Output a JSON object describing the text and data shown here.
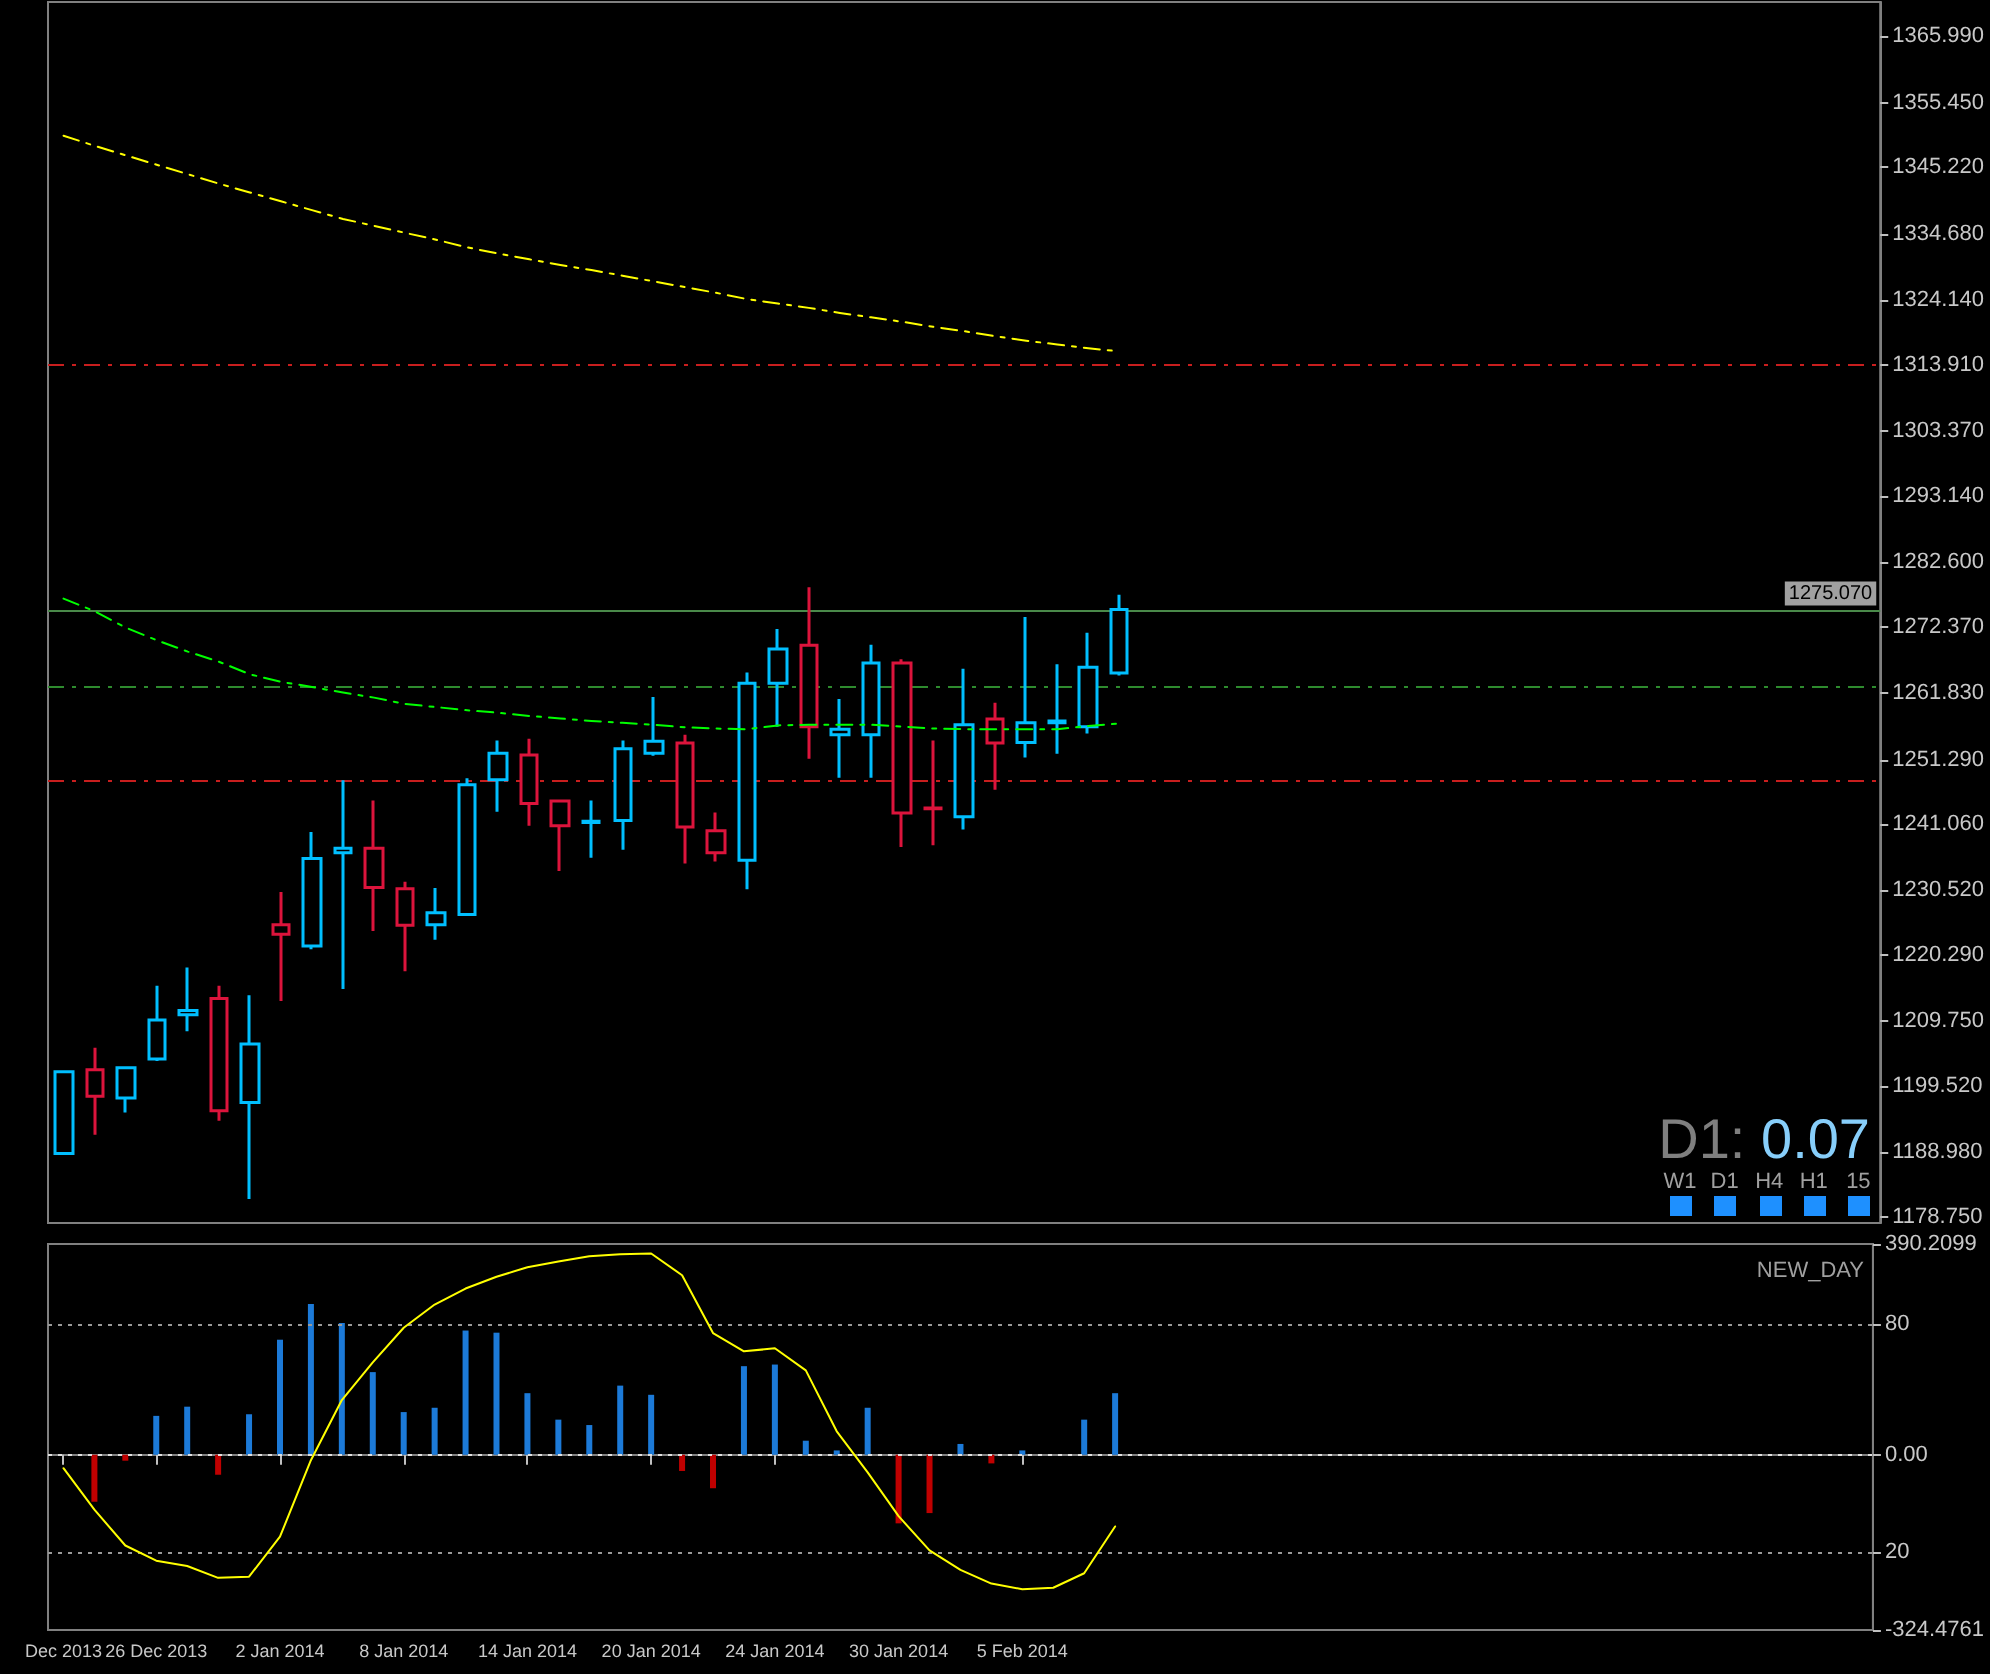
{
  "chart_data": [
    {
      "type": "candlestick",
      "tick_labels": "y",
      "categories": [
        null,
        null,
        null,
        null,
        null,
        null,
        null,
        null,
        null,
        null,
        null,
        null,
        null,
        null,
        null,
        null,
        null,
        null,
        null,
        null,
        null,
        null,
        null,
        null,
        null,
        null,
        null,
        null,
        null,
        null,
        null,
        null,
        null,
        null,
        null,
        null,
        null,
        null,
        null,
        null,
        null,
        null,
        null,
        null,
        null,
        null,
        null,
        null,
        null,
        null,
        null,
        null,
        null,
        null,
        null,
        null,
        null,
        null,
        null
      ],
      "ohlc": [
        [
          1188.8,
          1201.8,
          1188.8,
          1201.8
        ],
        [
          1202.1,
          1205.6,
          1191.8,
          1197.9
        ],
        [
          1197.6,
          1202.4,
          1195.3,
          1202.4
        ],
        [
          1203.8,
          1215.4,
          1203.5,
          1210.0
        ],
        [
          1210.8,
          1218.3,
          1208.2,
          1211.5
        ],
        [
          1213.4,
          1215.4,
          1194.0,
          1195.6
        ],
        [
          1196.9,
          1213.9,
          1181.6,
          1206.2
        ],
        [
          1225.1,
          1230.3,
          1213.0,
          1223.6
        ],
        [
          1221.7,
          1239.8,
          1221.2,
          1235.6
        ],
        [
          1236.5,
          1248.0,
          1214.9,
          1237.2
        ],
        [
          1237.2,
          1244.8,
          1224.1,
          1231.0
        ],
        [
          1230.8,
          1231.9,
          1217.7,
          1225.0
        ],
        [
          1225.1,
          1230.9,
          1222.7,
          1227.0
        ],
        [
          1226.7,
          1248.3,
          1226.7,
          1247.3
        ],
        [
          1248.1,
          1254.3,
          1243.0,
          1252.3
        ],
        [
          1252.0,
          1254.6,
          1240.8,
          1244.3
        ],
        [
          1244.7,
          1244.7,
          1233.6,
          1240.8
        ],
        [
          1241.3,
          1244.8,
          1235.7,
          1241.5
        ],
        [
          1241.6,
          1254.3,
          1237.0,
          1253.0
        ],
        [
          1252.3,
          1261.2,
          1251.9,
          1254.2
        ],
        [
          1253.9,
          1255.2,
          1234.8,
          1240.6
        ],
        [
          1240.0,
          1242.9,
          1235.1,
          1236.5
        ],
        [
          1235.3,
          1265.1,
          1230.7,
          1263.4
        ],
        [
          1263.4,
          1272.0,
          1256.5,
          1268.8
        ],
        [
          1269.4,
          1278.6,
          1251.4,
          1256.5
        ],
        [
          1255.2,
          1260.9,
          1248.4,
          1256.1
        ],
        [
          1255.2,
          1269.5,
          1248.4,
          1266.6
        ],
        [
          1266.6,
          1267.2,
          1237.4,
          1242.8
        ],
        [
          1243.6,
          1254.3,
          1237.7,
          1243.5
        ],
        [
          1242.2,
          1265.7,
          1240.2,
          1256.8
        ],
        [
          1257.7,
          1260.3,
          1246.5,
          1253.9
        ],
        [
          1254.0,
          1273.9,
          1251.6,
          1257.1
        ],
        [
          1257.1,
          1266.4,
          1252.2,
          1257.4
        ],
        [
          1256.5,
          1271.4,
          1255.4,
          1265.9
        ],
        [
          1265.0,
          1277.4,
          1264.6,
          1275.07
        ],
        null,
        null,
        null,
        null,
        null,
        null,
        null,
        null,
        null,
        null,
        null,
        null,
        null,
        null,
        null,
        null,
        null,
        null,
        null,
        null,
        null,
        null,
        null,
        null
      ],
      "colors": [
        "#00bfff",
        "#dc143c",
        "#00bfff",
        "#00bfff",
        "#00bfff",
        "#dc143c",
        "#00bfff",
        "#dc143c",
        "#00bfff",
        "#00bfff",
        "#dc143c",
        "#dc143c",
        "#00bfff",
        "#00bfff",
        "#00bfff",
        "#dc143c",
        "#dc143c",
        "#00bfff",
        "#00bfff",
        "#00bfff",
        "#dc143c",
        "#dc143c",
        "#00bfff",
        "#00bfff",
        "#dc143c",
        "#00bfff",
        "#00bfff",
        "#dc143c",
        "#dc143c",
        "#00bfff",
        "#dc143c",
        "#00bfff",
        "#00bfff",
        "#00bfff",
        "#00bfff",
        null,
        null,
        null,
        null,
        null,
        null,
        null,
        null,
        null,
        null,
        null,
        null,
        null,
        null,
        null,
        null,
        null,
        null,
        null,
        null,
        null,
        null,
        null,
        null
      ],
      "series": [
        {
          "type": "line",
          "color": "#ffff00",
          "line_style": "dashed",
          "values": [
            1350.2,
            1348.6,
            1347.1,
            1345.6,
            1344.1,
            1342.6,
            1341.2,
            1339.8,
            1338.4,
            1337.0,
            1335.9,
            1334.8,
            1333.7,
            1332.5,
            1331.5,
            1330.6,
            1329.7,
            1328.9,
            1328.0,
            1327.1,
            1326.2,
            1325.3,
            1324.3,
            1323.6,
            1322.9,
            1322.1,
            1321.4,
            1320.7,
            1319.9,
            1319.2,
            1318.4,
            1317.7,
            1317.1,
            1316.5,
            1316.0,
            null,
            null,
            null,
            null,
            null,
            null,
            null,
            null,
            null,
            null,
            null,
            null,
            null,
            null,
            null,
            null,
            null,
            null,
            null,
            null,
            null,
            null,
            null,
            null
          ]
        },
        {
          "type": "line",
          "color": "#00ff00",
          "line_style": "dashed",
          "values": [
            1276.8,
            1274.8,
            1272.2,
            1270.2,
            1268.4,
            1266.8,
            1264.8,
            1263.6,
            1262.8,
            1261.9,
            1261.1,
            1260.1,
            1259.6,
            1259.1,
            1258.7,
            1258.2,
            1257.8,
            1257.4,
            1257.1,
            1256.8,
            1256.4,
            1256.2,
            1256.1,
            1256.7,
            1256.8,
            1256.8,
            1256.8,
            1256.5,
            1256.2,
            1256.1,
            1256.1,
            1256.1,
            1256.1,
            1256.6,
            1257.0,
            null,
            null,
            null,
            null,
            null,
            null,
            null,
            null,
            null,
            null,
            null,
            null,
            null,
            null,
            null,
            null,
            null,
            null,
            null,
            null,
            null,
            null,
            null,
            null
          ]
        }
      ],
      "ylim": [
        1177.8,
        1371.4
      ],
      "yticks": [
        {
          "value": 1365.99,
          "label": "1365.990"
        },
        {
          "value": 1355.45,
          "label": "1355.450"
        },
        {
          "value": 1345.22,
          "label": "1345.220"
        },
        {
          "value": 1334.68,
          "label": "1334.680"
        },
        {
          "value": 1324.14,
          "label": "1324.140"
        },
        {
          "value": 1313.91,
          "label": "1313.910"
        },
        {
          "value": 1303.37,
          "label": "1303.370"
        },
        {
          "value": 1293.14,
          "label": "1293.140"
        },
        {
          "value": 1282.6,
          "label": "1282.600"
        },
        {
          "value": 1272.37,
          "label": "1272.370"
        },
        {
          "value": 1261.83,
          "label": "1261.830"
        },
        {
          "value": 1251.29,
          "label": "1251.290"
        },
        {
          "value": 1241.06,
          "label": "1241.060"
        },
        {
          "value": 1230.52,
          "label": "1230.520"
        },
        {
          "value": 1220.29,
          "label": "1220.290"
        },
        {
          "value": 1209.75,
          "label": "1209.750"
        },
        {
          "value": 1199.52,
          "label": "1199.520"
        },
        {
          "value": 1188.98,
          "label": "1188.980"
        },
        {
          "value": 1178.75,
          "label": "1178.750"
        }
      ],
      "ref_lines": [
        {
          "axis": "y",
          "value": 1314.0,
          "color": "#c81e1e",
          "line_style": "dashed"
        },
        {
          "axis": "y",
          "value": 1275.07,
          "label": "1275.070",
          "color": "#4a8a4a",
          "line_style": "solid"
        },
        {
          "axis": "y",
          "value": 1262.9,
          "color": "#2e8b2e",
          "line_style": "dashed"
        },
        {
          "axis": "y",
          "value": 1248.0,
          "color": "#c81e1e",
          "line_style": "dashed"
        }
      ],
      "annotations": [
        "D1: 0.07",
        "W1",
        "D1",
        "H4",
        "H1",
        "15"
      ]
    },
    {
      "type": "bar",
      "title": "NEW_DAY",
      "categories": [
        "Dec 2013",
        null,
        null,
        "26 Dec 2013",
        null,
        null,
        null,
        "2 Jan 2014",
        null,
        null,
        null,
        "8 Jan 2014",
        null,
        null,
        null,
        "14 Jan 2014",
        null,
        null,
        null,
        "20 Jan 2014",
        null,
        null,
        null,
        "24 Jan 2014",
        null,
        null,
        null,
        "30 Jan 2014",
        null,
        null,
        null,
        "5 Feb 2014",
        null,
        null,
        null,
        null,
        null,
        null,
        null,
        null,
        null,
        null,
        null,
        null,
        null,
        null,
        null,
        null,
        null,
        null,
        null,
        null,
        null,
        null,
        null,
        null,
        null,
        null,
        null
      ],
      "series": [
        {
          "type": "bar",
          "values": [
            null,
            -87,
            -11,
            72,
            89,
            -37,
            75,
            213,
            279,
            244,
            153,
            79,
            87,
            230,
            226,
            114,
            65,
            55,
            128,
            111,
            -30,
            -62,
            164,
            167,
            26,
            8,
            87,
            -127,
            -108,
            20,
            -16,
            8,
            null,
            65,
            114,
            null,
            null,
            null,
            null,
            null,
            null,
            null,
            null,
            null,
            null,
            null,
            null,
            null,
            null,
            null,
            null,
            null,
            null,
            null,
            null,
            null,
            null,
            null,
            null
          ],
          "colors": [
            null,
            "#c00000",
            "#c00000",
            "#1c7ad8",
            "#1c7ad8",
            "#c00000",
            "#1c7ad8",
            "#1c7ad8",
            "#1c7ad8",
            "#1c7ad8",
            "#1c7ad8",
            "#1c7ad8",
            "#1c7ad8",
            "#1c7ad8",
            "#1c7ad8",
            "#1c7ad8",
            "#1c7ad8",
            "#1c7ad8",
            "#1c7ad8",
            "#1c7ad8",
            "#c00000",
            "#c00000",
            "#1c7ad8",
            "#1c7ad8",
            "#1c7ad8",
            "#1c7ad8",
            "#1c7ad8",
            "#c00000",
            "#c00000",
            "#1c7ad8",
            "#c00000",
            "#1c7ad8",
            null,
            "#1c7ad8",
            "#1c7ad8",
            null,
            null,
            null,
            null,
            null,
            null,
            null,
            null,
            null,
            null,
            null,
            null,
            null,
            null,
            null,
            null,
            null,
            null,
            null,
            null,
            null,
            null,
            null,
            null
          ]
        },
        {
          "type": "line",
          "color": "#ffff00",
          "axis": "y2",
          "values": [
            42.0,
            31.1,
            21.7,
            17.7,
            16.3,
            13.2,
            13.5,
            24.0,
            44.1,
            59.9,
            69.8,
            78.9,
            85.0,
            89.2,
            92.3,
            94.8,
            96.3,
            97.7,
            98.2,
            98.4,
            92.7,
            77.5,
            72.7,
            73.5,
            67.7,
            51.7,
            40.9,
            29.4,
            20.4,
            15.3,
            11.7,
            10.2,
            10.6,
            14.4,
            26.7,
            null,
            null,
            null,
            null,
            null,
            null,
            null,
            null,
            null,
            null,
            null,
            null,
            null,
            null,
            null,
            null,
            null,
            null,
            null,
            null,
            null,
            null,
            null,
            null
          ]
        }
      ],
      "ylim": [
        -324.4761,
        390.2099
      ],
      "yticks": [
        390.2099,
        {
          "value": 0,
          "label": "0.00"
        },
        -324.4761
      ],
      "y2lim": [
        -0.5,
        100.9
      ],
      "y2ticks": [
        80,
        20
      ],
      "ref_lines": [
        {
          "axis": "y2",
          "value": 80,
          "color": "#9a9a9a",
          "line_style": "dotted"
        },
        {
          "axis": "y2",
          "value": 20,
          "color": "#9a9a9a",
          "line_style": "dotted"
        },
        {
          "axis": "y",
          "value": 0,
          "color": "#e0e0e0",
          "line_style": "dotted"
        }
      ]
    }
  ]
}
